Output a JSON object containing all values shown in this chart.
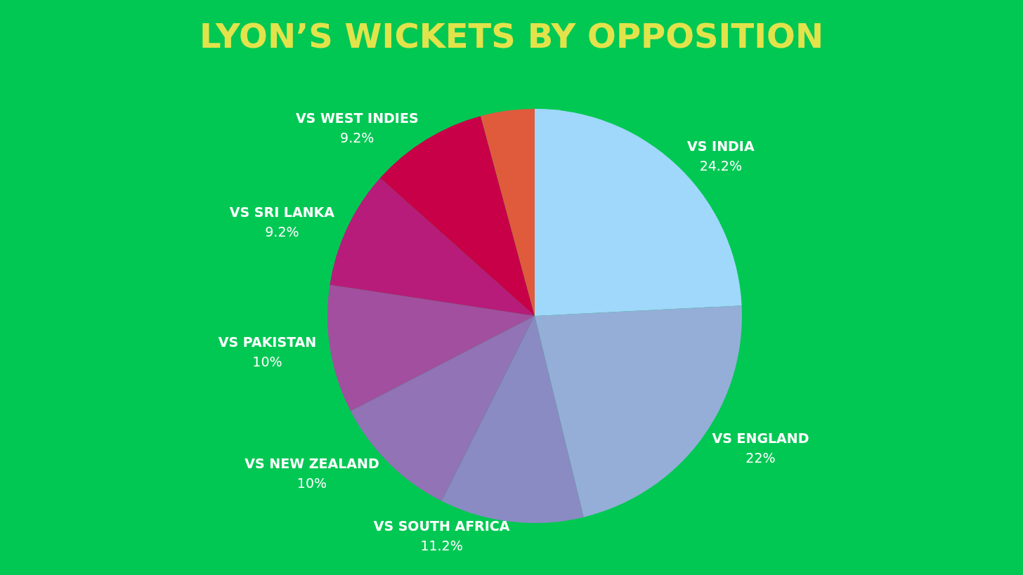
{
  "chart_data": {
    "type": "pie",
    "title": "LYON’S WICKETS BY OPPOSITION",
    "categories": [
      "VS INDIA",
      "VS ENGLAND",
      "VS SOUTH AFRICA",
      "VS NEW ZEALAND",
      "VS PAKISTAN",
      "VS SRI LANKA",
      "VS WEST INDIES",
      null
    ],
    "values": [
      24.2,
      22,
      11.2,
      10,
      10,
      9.2,
      9.2,
      4.2
    ],
    "value_labels": [
      "24.2%",
      "22%",
      "11.2%",
      "10%",
      "10%",
      "9.2%",
      "9.2%",
      null
    ],
    "colors": [
      "#a0d8fb",
      "#94aed8",
      "#8a8bc2",
      "#9173b6",
      "#a24f9f",
      "#b71c7a",
      "#c80048",
      "#e05a3c"
    ]
  }
}
